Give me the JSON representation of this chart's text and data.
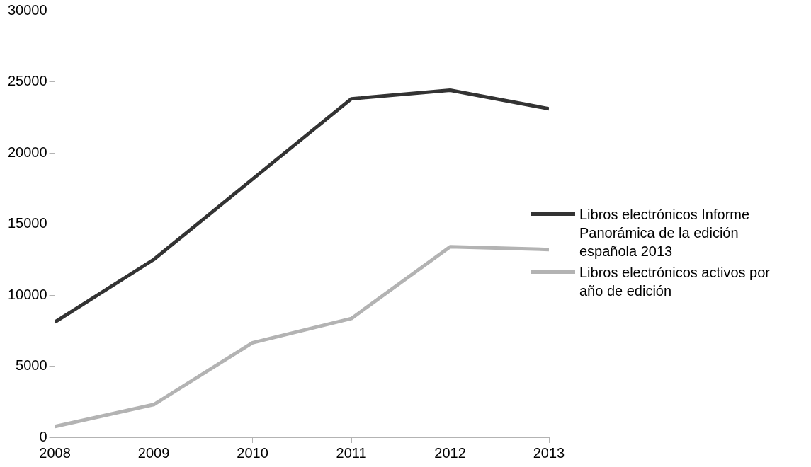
{
  "chart_data": {
    "type": "line",
    "x": [
      2008,
      2009,
      2010,
      2011,
      2012,
      2013
    ],
    "xlim": [
      2008,
      2013
    ],
    "xticks": [
      2008,
      2009,
      2010,
      2011,
      2012,
      2013
    ],
    "ylim": [
      0,
      30000
    ],
    "yticks": [
      0,
      5000,
      10000,
      15000,
      20000,
      25000,
      30000
    ],
    "grid": false,
    "legend": "right",
    "marker": "none",
    "line_style": "solid",
    "series": [
      {
        "name": "Libros electrónicos Informe Panorámica de la edición española 2013",
        "color": "#333333",
        "values": [
          8100,
          12500,
          18150,
          23800,
          24400,
          23100
        ]
      },
      {
        "name": "Libros electrónicos activos por año de edición",
        "color": "#b3b3b3",
        "values": [
          760,
          2300,
          6650,
          8350,
          13400,
          13200
        ]
      }
    ]
  }
}
